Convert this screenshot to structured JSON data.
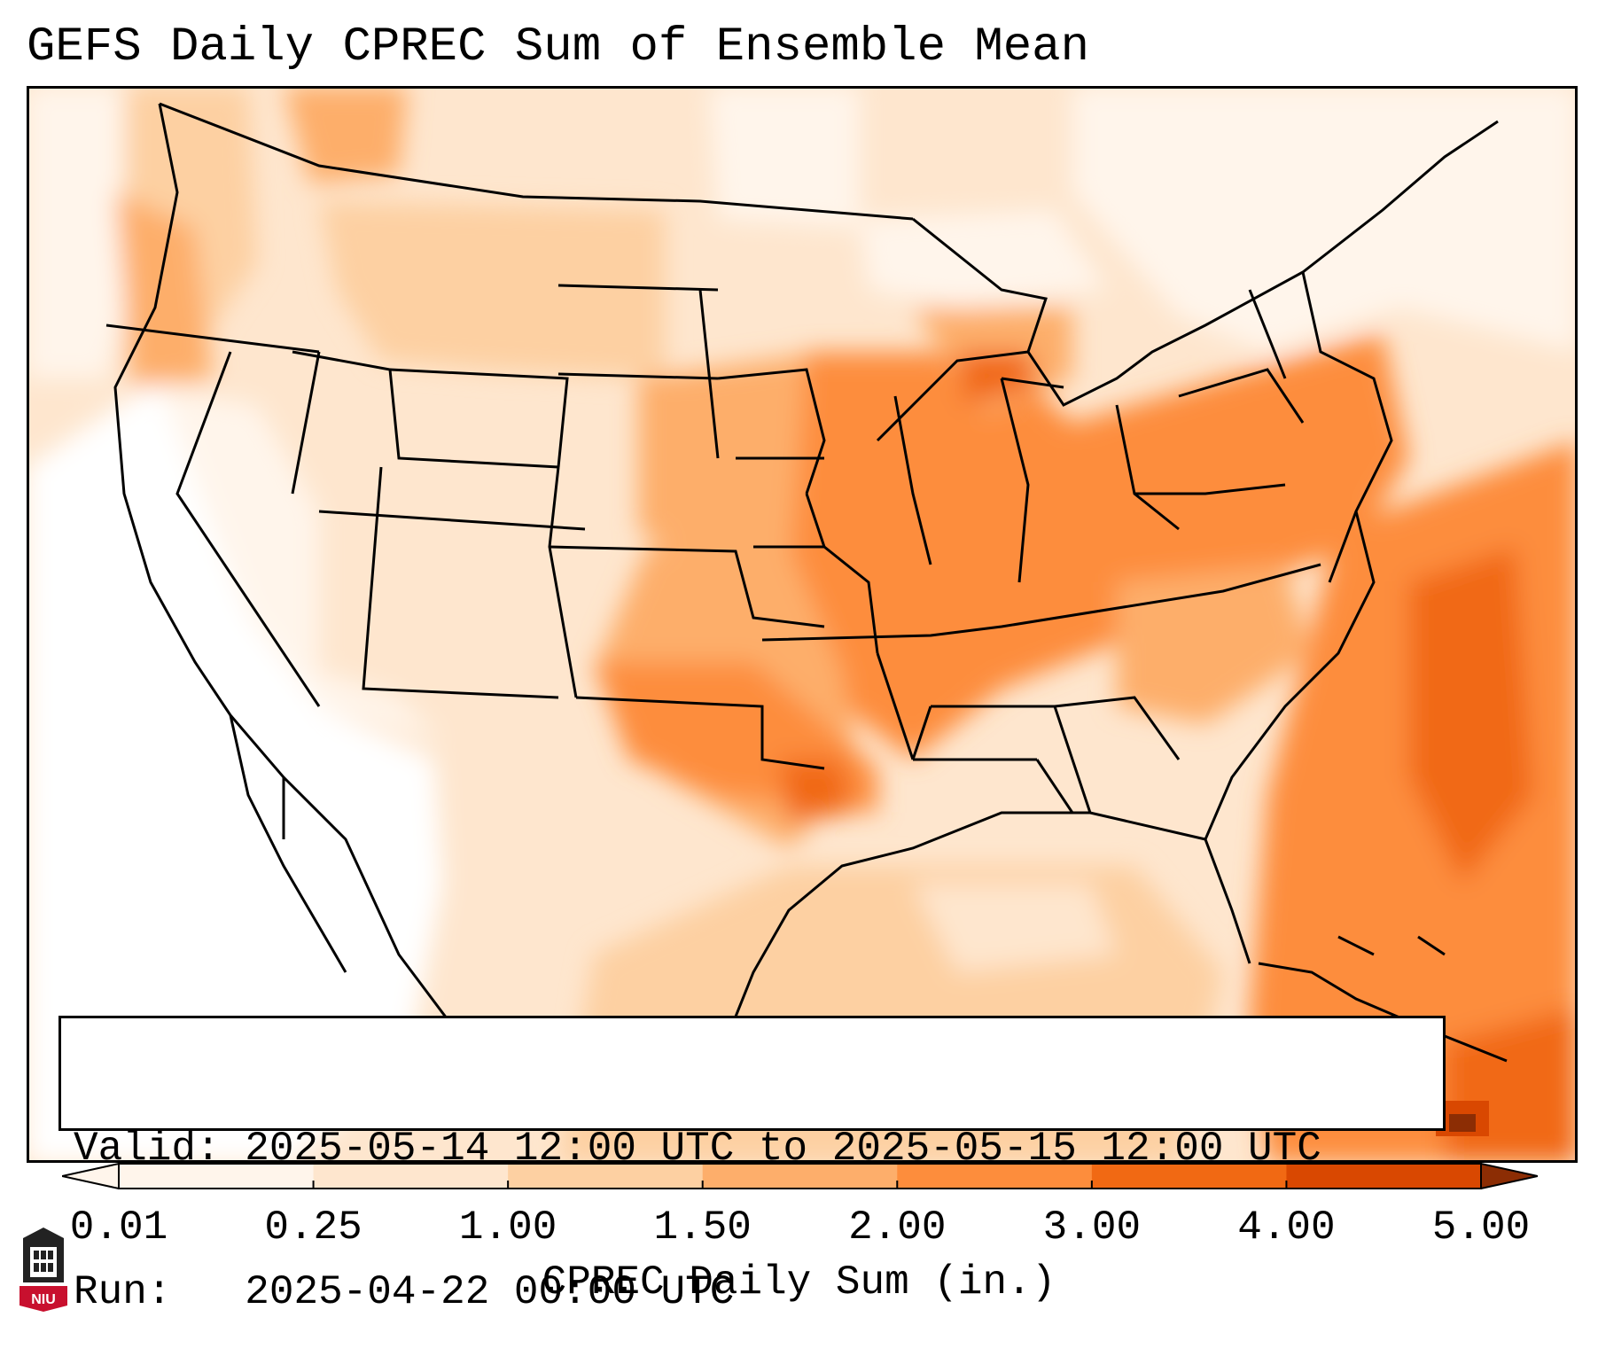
{
  "header": {
    "title": "GEFS Daily CPREC Sum of Ensemble Mean"
  },
  "info": {
    "valid_label": "Valid:",
    "valid_text": "2025-05-14 12:00 UTC to 2025-05-15 12:00 UTC",
    "run_label": "Run:",
    "run_text": "2025-04-22 00:00 UTC"
  },
  "colorbar": {
    "label": "CPREC Daily Sum (in.)",
    "ticks": [
      "0.01",
      "0.25",
      "1.00",
      "1.50",
      "2.00",
      "3.00",
      "4.00",
      "5.00"
    ],
    "colors": [
      "#fff5eb",
      "#fee6ce",
      "#fdd0a2",
      "#fdae6b",
      "#fd8d3c",
      "#f16913",
      "#d94801",
      "#8c2d04"
    ],
    "extend": "both"
  },
  "logo": {
    "text": "NIU",
    "icon": "niu-tower-logo-icon"
  }
}
